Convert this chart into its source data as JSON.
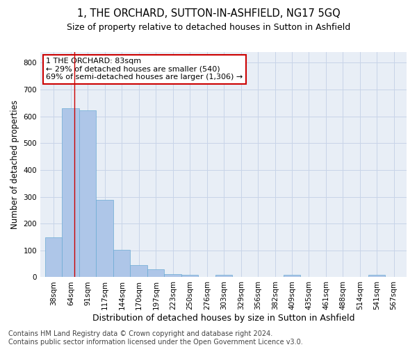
{
  "title": "1, THE ORCHARD, SUTTON-IN-ASHFIELD, NG17 5GQ",
  "subtitle": "Size of property relative to detached houses in Sutton in Ashfield",
  "xlabel": "Distribution of detached houses by size in Sutton in Ashfield",
  "ylabel": "Number of detached properties",
  "footer_line1": "Contains HM Land Registry data © Crown copyright and database right 2024.",
  "footer_line2": "Contains public sector information licensed under the Open Government Licence v3.0.",
  "annotation_line1": "1 THE ORCHARD: 83sqm",
  "annotation_line2": "← 29% of detached houses are smaller (540)",
  "annotation_line3": "69% of semi-detached houses are larger (1,306) →",
  "bar_categories": [
    "38sqm",
    "64sqm",
    "91sqm",
    "117sqm",
    "144sqm",
    "170sqm",
    "197sqm",
    "223sqm",
    "250sqm",
    "276sqm",
    "303sqm",
    "329sqm",
    "356sqm",
    "382sqm",
    "409sqm",
    "435sqm",
    "461sqm",
    "488sqm",
    "514sqm",
    "541sqm",
    "567sqm"
  ],
  "bar_values": [
    148,
    630,
    622,
    288,
    101,
    44,
    30,
    12,
    8,
    0,
    8,
    0,
    0,
    0,
    8,
    0,
    0,
    0,
    0,
    8,
    0
  ],
  "bar_left_edges": [
    38,
    64,
    91,
    117,
    144,
    170,
    197,
    223,
    250,
    276,
    303,
    329,
    356,
    382,
    409,
    435,
    461,
    488,
    514,
    541,
    567
  ],
  "bar_widths": [
    26,
    27,
    26,
    27,
    26,
    27,
    26,
    27,
    26,
    27,
    26,
    27,
    26,
    27,
    26,
    26,
    27,
    26,
    27,
    26,
    26
  ],
  "bar_color": "#aec6e8",
  "bar_edge_color": "#6aaad4",
  "vline_color": "#cc0000",
  "vline_x": 83,
  "ylim": [
    0,
    840
  ],
  "yticks": [
    0,
    100,
    200,
    300,
    400,
    500,
    600,
    700,
    800
  ],
  "annotation_box_color": "#cc0000",
  "grid_color": "#c8d4e8",
  "bg_color": "#e8eef6",
  "title_fontsize": 10.5,
  "subtitle_fontsize": 9,
  "tick_fontsize": 7.5,
  "ylabel_fontsize": 8.5,
  "xlabel_fontsize": 9,
  "footer_fontsize": 7,
  "annotation_fontsize": 8
}
